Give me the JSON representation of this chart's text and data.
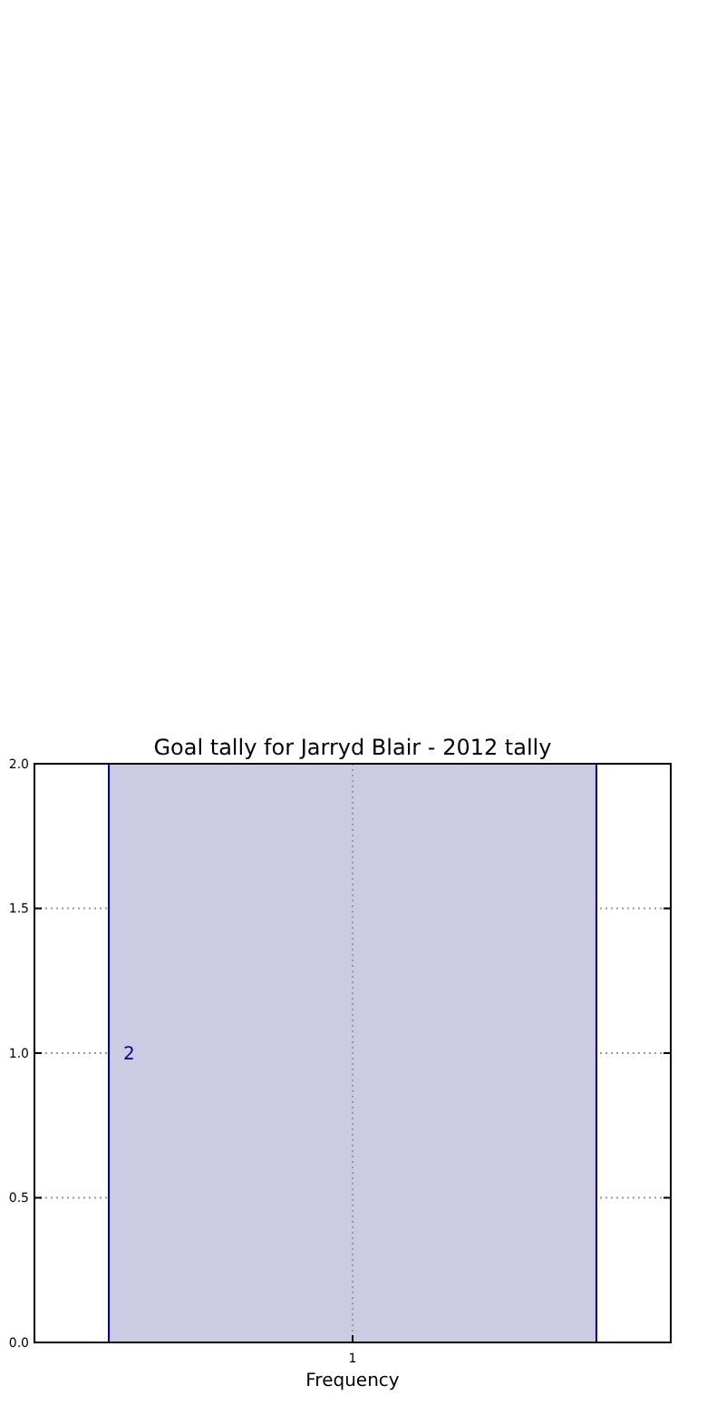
{
  "chart_data": {
    "type": "bar",
    "title": "Goal tally for Jarryd Blair - 2012 tally",
    "xlabel": "Frequency",
    "categories": [
      "1"
    ],
    "values": [
      2
    ],
    "color": "#cbcbe4",
    "ylim": [
      0,
      2
    ],
    "yticks": [
      {
        "value": 0,
        "label": "0.0"
      },
      {
        "value": 0.5,
        "label": "0.5"
      },
      {
        "value": 1,
        "label": "1.0"
      },
      {
        "value": 1.5,
        "label": "1.5"
      },
      {
        "value": 2,
        "label": "2.0"
      }
    ],
    "grid": true,
    "data_labels": true
  }
}
